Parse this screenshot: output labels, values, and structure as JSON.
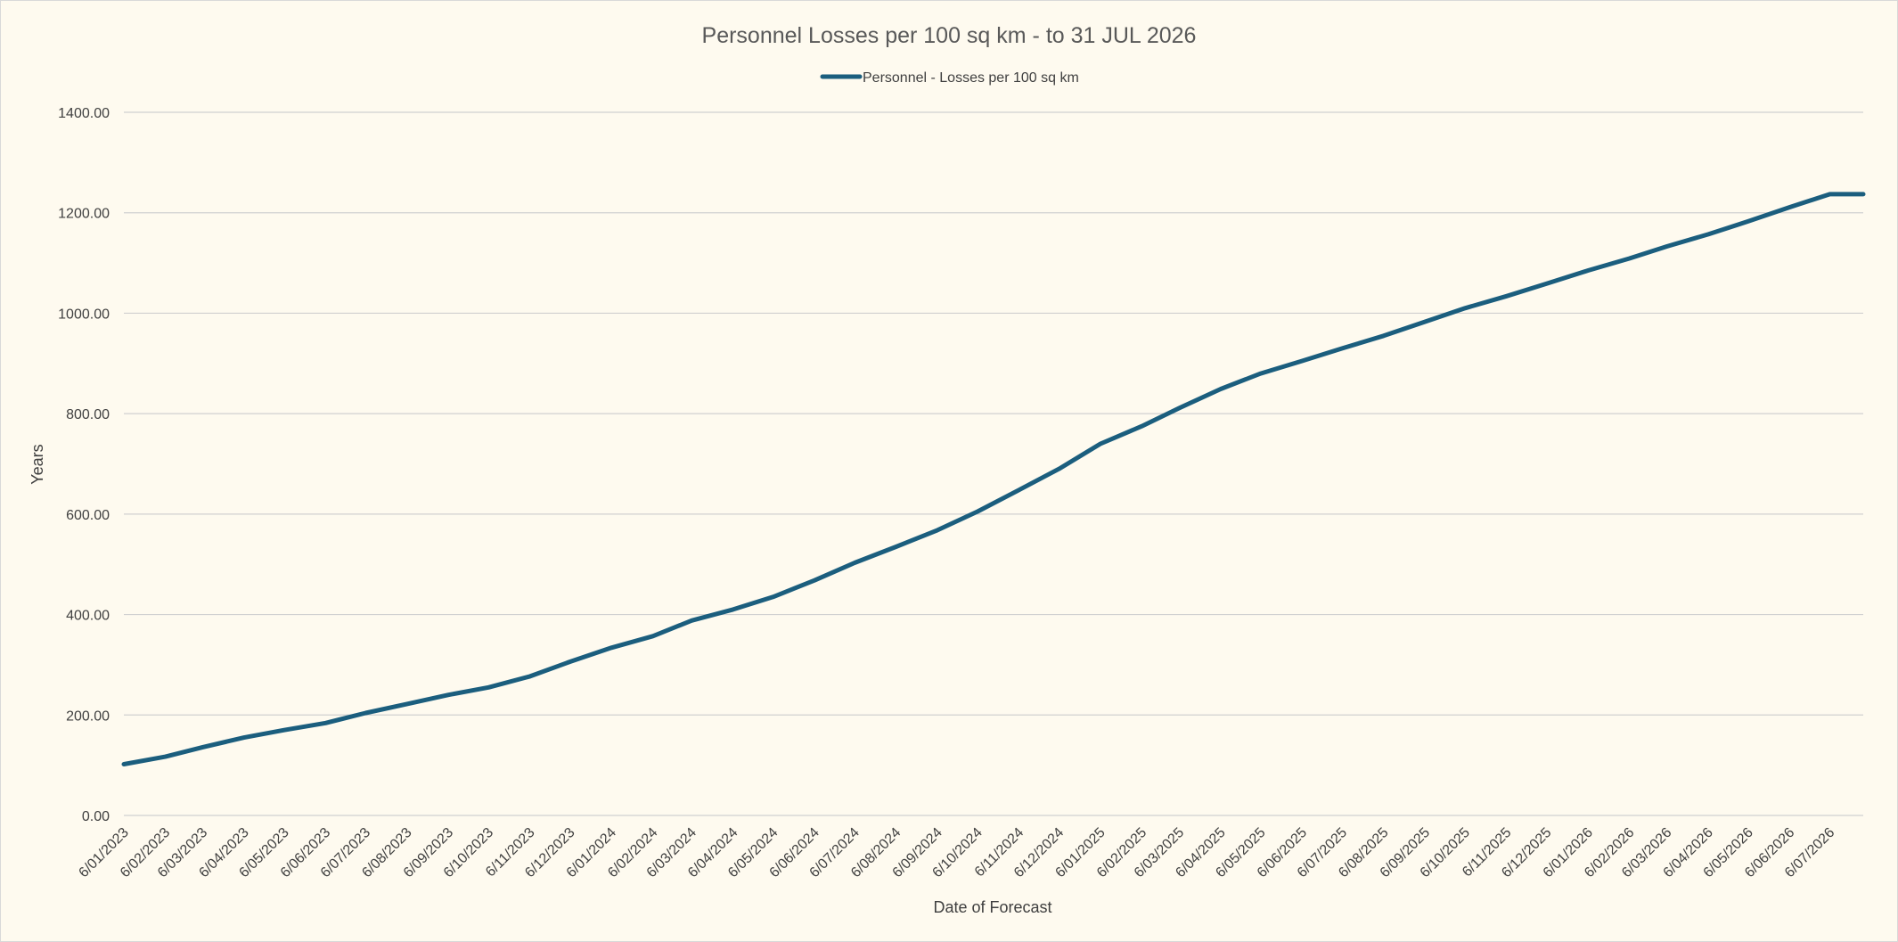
{
  "chart_data": {
    "type": "line",
    "title": "Personnel Losses per 100 sq km - to 31 JUL 2026",
    "xlabel": "Date of Forecast",
    "ylabel": "Years",
    "ylim": [
      0,
      1400
    ],
    "y_ticks": [
      "0.00",
      "200.00",
      "400.00",
      "600.00",
      "800.00",
      "1000.00",
      "1200.00",
      "1400.00"
    ],
    "x_tick_labels": [
      "6/01/2023",
      "6/02/2023",
      "6/03/2023",
      "6/04/2023",
      "6/05/2023",
      "6/06/2023",
      "6/07/2023",
      "6/08/2023",
      "6/09/2023",
      "6/10/2023",
      "6/11/2023",
      "6/12/2023",
      "6/01/2024",
      "6/02/2024",
      "6/03/2024",
      "6/04/2024",
      "6/05/2024",
      "6/06/2024",
      "6/07/2024",
      "6/08/2024",
      "6/09/2024",
      "6/10/2024",
      "6/11/2024",
      "6/12/2024",
      "6/01/2025",
      "6/02/2025",
      "6/03/2025",
      "6/04/2025",
      "6/05/2025",
      "6/06/2025",
      "6/07/2025",
      "6/08/2025",
      "6/09/2025",
      "6/10/2025",
      "6/11/2025",
      "6/12/2025",
      "6/01/2026",
      "6/02/2026",
      "6/03/2026",
      "6/04/2026",
      "6/05/2026",
      "6/06/2026",
      "6/07/2026"
    ],
    "grid": true,
    "legend_position": "top",
    "series": [
      {
        "name": "Personnel - Losses per 100 sq km",
        "color": "#1b5e7e",
        "x": [
          "6/01/2023",
          "6/02/2023",
          "6/03/2023",
          "6/04/2023",
          "6/05/2023",
          "6/06/2023",
          "6/07/2023",
          "6/08/2023",
          "6/09/2023",
          "6/10/2023",
          "6/11/2023",
          "6/12/2023",
          "6/01/2024",
          "6/02/2024",
          "6/03/2024",
          "6/04/2024",
          "6/05/2024",
          "6/06/2024",
          "6/07/2024",
          "6/08/2024",
          "6/09/2024",
          "6/10/2024",
          "6/11/2024",
          "6/12/2024",
          "6/01/2025",
          "6/02/2025",
          "6/03/2025",
          "6/04/2025",
          "6/05/2025",
          "6/06/2025",
          "6/07/2025",
          "6/08/2025",
          "6/09/2025",
          "6/10/2025",
          "6/11/2025",
          "6/12/2025",
          "6/01/2026",
          "6/02/2026",
          "6/03/2026",
          "6/04/2026",
          "6/05/2026",
          "6/06/2026",
          "6/07/2026",
          "31/07/2026"
        ],
        "values": [
          102,
          117,
          136,
          155,
          170,
          184,
          204,
          222,
          240,
          255,
          277,
          306,
          334,
          357,
          388,
          410,
          435,
          468,
          503,
          535,
          568,
          605,
          648,
          690,
          740,
          775,
          811,
          849,
          880,
          905,
          930,
          955,
          983,
          1010,
          1034,
          1059,
          1085,
          1109,
          1133,
          1157,
          1183,
          1211,
          1237,
          1237
        ]
      }
    ]
  }
}
